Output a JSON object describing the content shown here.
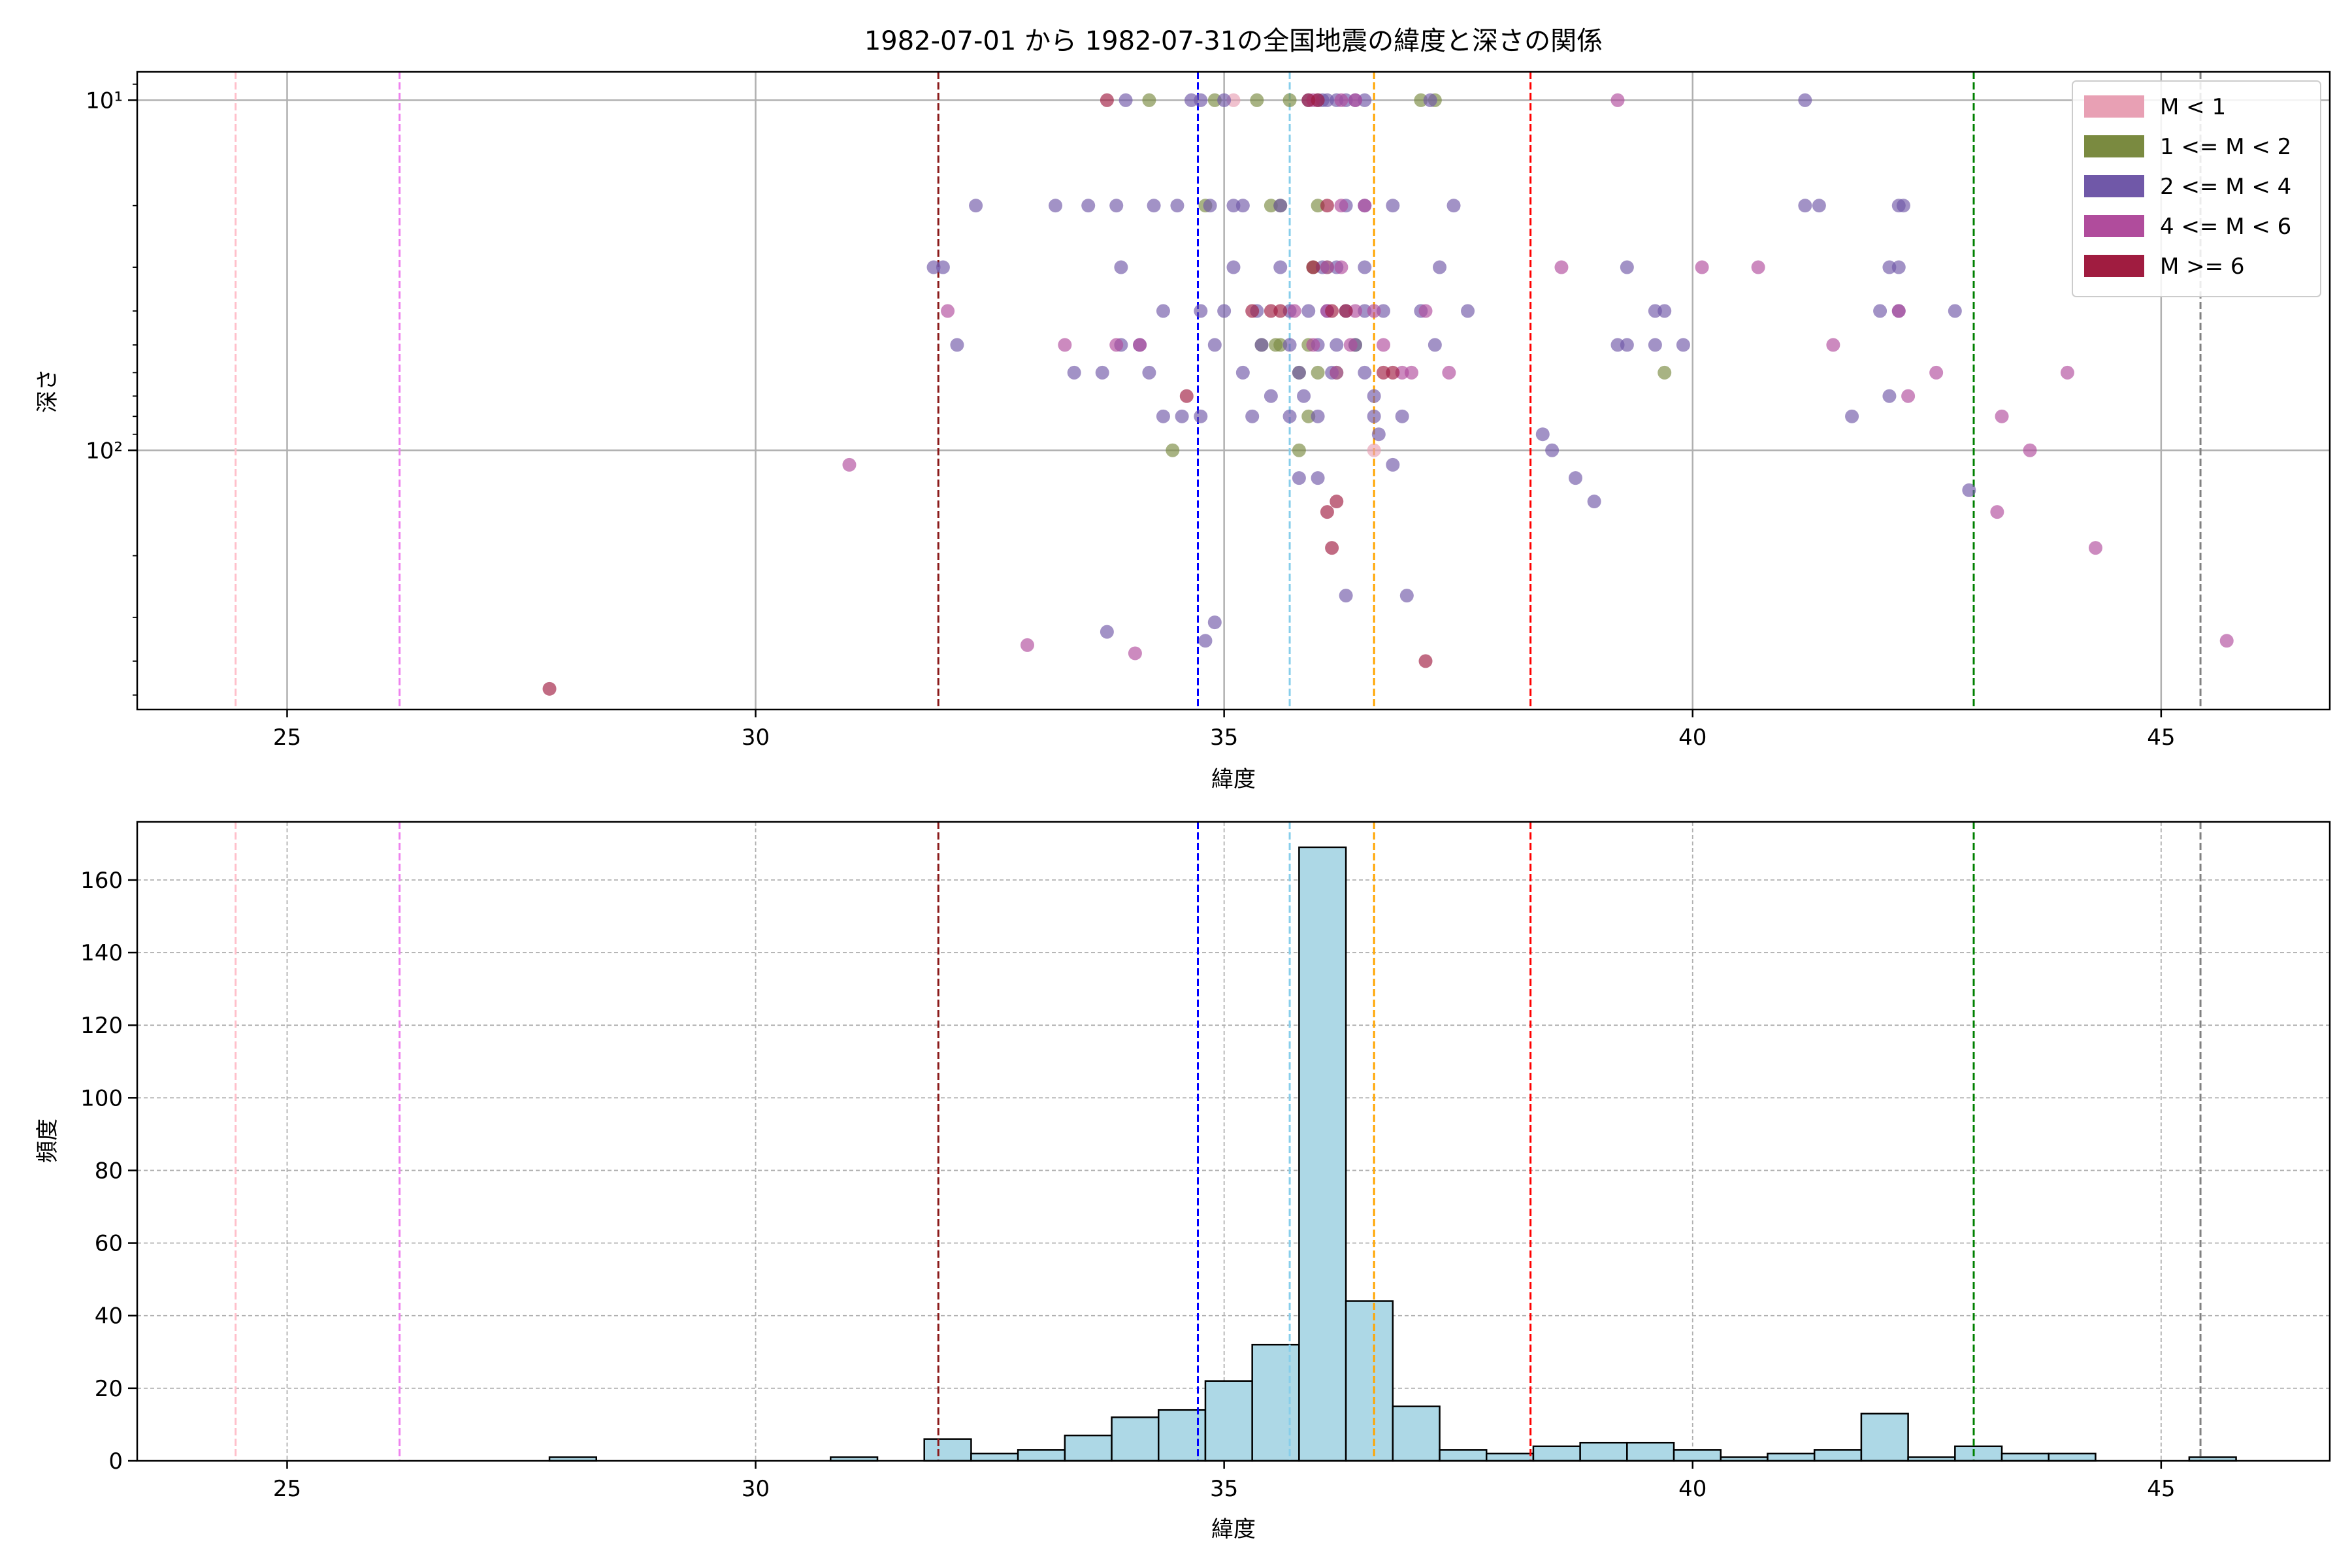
{
  "title": "1982-07-01 から 1982-07-31の全国地震の緯度と深さの関係",
  "chart_data": [
    {
      "type": "scatter",
      "xlabel": "緯度",
      "ylabel": "深さ",
      "xlim": [
        23.4,
        46.8
      ],
      "ylim": [
        550,
        8.3
      ],
      "yscale": "log-inverted",
      "x_ticks": [
        25,
        30,
        35,
        40,
        45
      ],
      "y_ticks": [
        {
          "value": 10,
          "label": "10¹"
        },
        {
          "value": 100,
          "label": "10²"
        }
      ],
      "grid": true,
      "legend_position": "top-right",
      "vlines": [
        {
          "x": 24.45,
          "color": "#ffc0cb"
        },
        {
          "x": 26.2,
          "color": "#ee82ee"
        },
        {
          "x": 31.95,
          "color": "#8b1a1a"
        },
        {
          "x": 34.72,
          "color": "#0000ff"
        },
        {
          "x": 35.7,
          "color": "#87ceeb"
        },
        {
          "x": 36.6,
          "color": "#ffa500"
        },
        {
          "x": 38.27,
          "color": "#ff0000"
        },
        {
          "x": 43.0,
          "color": "#008000"
        },
        {
          "x": 45.42,
          "color": "#808080"
        }
      ],
      "series": [
        {
          "name": "M < 1",
          "color": "#e8a0b4",
          "points": [
            [
              36.6,
              100
            ],
            [
              35.1,
              10
            ]
          ]
        },
        {
          "name": "1 <= M < 2",
          "color": "#7a8a40",
          "points": [
            [
              34.2,
              10
            ],
            [
              34.9,
              10
            ],
            [
              35.35,
              10
            ],
            [
              35.7,
              10
            ],
            [
              37.1,
              10
            ],
            [
              37.25,
              10
            ],
            [
              34.8,
              20
            ],
            [
              35.5,
              20
            ],
            [
              35.6,
              20
            ],
            [
              36.0,
              20
            ],
            [
              35.95,
              30
            ],
            [
              36.1,
              30
            ],
            [
              35.4,
              50
            ],
            [
              35.6,
              50
            ],
            [
              35.9,
              50
            ],
            [
              36.4,
              50
            ],
            [
              35.8,
              60
            ],
            [
              36.0,
              60
            ],
            [
              36.2,
              60
            ],
            [
              35.9,
              80
            ],
            [
              39.7,
              60
            ],
            [
              35.8,
              100
            ],
            [
              34.45,
              100
            ],
            [
              35.55,
              50
            ]
          ]
        },
        {
          "name": "2 <= M < 4",
          "color": "#7058a8",
          "points": [
            [
              33.95,
              10
            ],
            [
              34.65,
              10
            ],
            [
              34.75,
              10
            ],
            [
              35.0,
              10
            ],
            [
              35.9,
              10
            ],
            [
              36.0,
              10
            ],
            [
              36.1,
              10
            ],
            [
              36.2,
              10
            ],
            [
              36.3,
              10
            ],
            [
              36.4,
              10
            ],
            [
              36.5,
              10
            ],
            [
              36.05,
              10
            ],
            [
              37.2,
              10
            ],
            [
              41.2,
              10
            ],
            [
              32.35,
              20
            ],
            [
              33.2,
              20
            ],
            [
              33.55,
              20
            ],
            [
              33.85,
              20
            ],
            [
              34.25,
              20
            ],
            [
              34.5,
              20
            ],
            [
              34.85,
              20
            ],
            [
              35.1,
              20
            ],
            [
              35.2,
              20
            ],
            [
              35.6,
              20
            ],
            [
              36.3,
              20
            ],
            [
              36.5,
              20
            ],
            [
              36.8,
              20
            ],
            [
              37.45,
              20
            ],
            [
              41.2,
              20
            ],
            [
              41.35,
              20
            ],
            [
              42.2,
              20
            ],
            [
              42.25,
              20
            ],
            [
              31.9,
              30
            ],
            [
              32.0,
              30
            ],
            [
              33.9,
              30
            ],
            [
              35.1,
              30
            ],
            [
              35.6,
              30
            ],
            [
              36.05,
              30
            ],
            [
              36.2,
              30
            ],
            [
              36.5,
              30
            ],
            [
              37.3,
              30
            ],
            [
              39.3,
              30
            ],
            [
              42.1,
              30
            ],
            [
              42.2,
              30
            ],
            [
              34.35,
              40
            ],
            [
              34.75,
              40
            ],
            [
              35.0,
              40
            ],
            [
              35.35,
              40
            ],
            [
              35.7,
              40
            ],
            [
              35.9,
              40
            ],
            [
              36.1,
              40
            ],
            [
              36.3,
              40
            ],
            [
              36.5,
              40
            ],
            [
              36.7,
              40
            ],
            [
              37.1,
              40
            ],
            [
              37.6,
              40
            ],
            [
              39.6,
              40
            ],
            [
              39.7,
              40
            ],
            [
              42.0,
              40
            ],
            [
              42.2,
              40
            ],
            [
              42.8,
              40
            ],
            [
              32.15,
              50
            ],
            [
              33.9,
              50
            ],
            [
              34.1,
              50
            ],
            [
              34.9,
              50
            ],
            [
              35.4,
              50
            ],
            [
              35.7,
              50
            ],
            [
              36.0,
              50
            ],
            [
              36.2,
              50
            ],
            [
              36.4,
              50
            ],
            [
              37.25,
              50
            ],
            [
              39.2,
              50
            ],
            [
              39.3,
              50
            ],
            [
              39.6,
              50
            ],
            [
              39.9,
              50
            ],
            [
              33.7,
              60
            ],
            [
              34.2,
              60
            ],
            [
              35.2,
              60
            ],
            [
              35.8,
              60
            ],
            [
              36.15,
              60
            ],
            [
              36.5,
              60
            ],
            [
              34.35,
              80
            ],
            [
              34.55,
              80
            ],
            [
              34.75,
              80
            ],
            [
              35.3,
              80
            ],
            [
              35.7,
              80
            ],
            [
              36.0,
              80
            ],
            [
              36.6,
              80
            ],
            [
              36.9,
              80
            ],
            [
              35.5,
              70
            ],
            [
              35.85,
              70
            ],
            [
              36.6,
              70
            ],
            [
              41.7,
              80
            ],
            [
              42.1,
              70
            ],
            [
              38.75,
              120
            ],
            [
              38.95,
              140
            ],
            [
              42.95,
              130
            ],
            [
              36.8,
              110
            ],
            [
              35.8,
              120
            ],
            [
              36.0,
              120
            ],
            [
              36.3,
              260
            ],
            [
              36.95,
              260
            ],
            [
              33.75,
              330
            ],
            [
              34.8,
              350
            ],
            [
              34.9,
              310
            ],
            [
              38.5,
              100
            ],
            [
              38.4,
              90
            ],
            [
              33.4,
              60
            ],
            [
              36.65,
              90
            ]
          ]
        },
        {
          "name": "4 <= M < 6",
          "color": "#b04c9c",
          "points": [
            [
              35.95,
              10
            ],
            [
              36.25,
              10
            ],
            [
              36.4,
              10
            ],
            [
              39.2,
              10
            ],
            [
              36.25,
              20
            ],
            [
              36.5,
              20
            ],
            [
              36.25,
              30
            ],
            [
              38.6,
              30
            ],
            [
              40.1,
              30
            ],
            [
              40.7,
              30
            ],
            [
              42.2,
              40
            ],
            [
              37.15,
              40
            ],
            [
              36.1,
              40
            ],
            [
              36.4,
              40
            ],
            [
              36.6,
              40
            ],
            [
              32.05,
              40
            ],
            [
              33.3,
              50
            ],
            [
              33.85,
              50
            ],
            [
              41.5,
              50
            ],
            [
              37.0,
              60
            ],
            [
              37.4,
              60
            ],
            [
              42.6,
              60
            ],
            [
              44.0,
              60
            ],
            [
              34.1,
              50
            ],
            [
              35.95,
              50
            ],
            [
              36.35,
              50
            ],
            [
              42.3,
              70
            ],
            [
              43.3,
              80
            ],
            [
              43.6,
              100
            ],
            [
              43.25,
              150
            ],
            [
              44.3,
              190
            ],
            [
              45.7,
              350
            ],
            [
              31.0,
              110
            ],
            [
              32.9,
              360
            ],
            [
              34.05,
              380
            ],
            [
              36.7,
              50
            ],
            [
              36.9,
              60
            ],
            [
              35.75,
              40
            ],
            [
              36.1,
              30
            ],
            [
              36.2,
              60
            ]
          ]
        },
        {
          "name": "M >= 6",
          "color": "#a01c40",
          "points": [
            [
              33.75,
              10
            ],
            [
              35.9,
              10
            ],
            [
              36.0,
              10
            ],
            [
              35.3,
              40
            ],
            [
              35.6,
              40
            ],
            [
              35.95,
              30
            ],
            [
              36.1,
              20
            ],
            [
              36.7,
              60
            ],
            [
              36.8,
              60
            ],
            [
              34.6,
              70
            ],
            [
              36.2,
              140
            ],
            [
              36.1,
              150
            ],
            [
              36.15,
              190
            ],
            [
              37.15,
              400
            ],
            [
              27.8,
              480
            ],
            [
              36.15,
              40
            ],
            [
              35.5,
              40
            ],
            [
              36.3,
              40
            ]
          ]
        }
      ]
    },
    {
      "type": "bar",
      "xlabel": "緯度",
      "ylabel": "頻度",
      "xlim": [
        23.4,
        46.8
      ],
      "ylim": [
        0,
        176
      ],
      "x_ticks": [
        25,
        30,
        35,
        40,
        45
      ],
      "y_ticks": [
        0,
        20,
        40,
        60,
        80,
        100,
        120,
        140,
        160
      ],
      "grid": true,
      "bar_color": "#add8e6",
      "edge_color": "#000000",
      "bin_width": 0.5,
      "bins": [
        [
          27.8,
          1
        ],
        [
          30.8,
          1
        ],
        [
          31.8,
          6
        ],
        [
          32.3,
          2
        ],
        [
          32.8,
          3
        ],
        [
          33.3,
          7
        ],
        [
          33.8,
          12
        ],
        [
          34.3,
          14
        ],
        [
          34.8,
          22
        ],
        [
          35.3,
          32
        ],
        [
          35.8,
          169
        ],
        [
          36.3,
          44
        ],
        [
          36.8,
          15
        ],
        [
          37.3,
          3
        ],
        [
          37.8,
          2
        ],
        [
          38.3,
          4
        ],
        [
          38.8,
          5
        ],
        [
          39.3,
          5
        ],
        [
          39.8,
          3
        ],
        [
          40.3,
          1
        ],
        [
          40.8,
          2
        ],
        [
          41.3,
          3
        ],
        [
          41.8,
          13
        ],
        [
          42.3,
          1
        ],
        [
          42.8,
          4
        ],
        [
          43.3,
          2
        ],
        [
          43.8,
          2
        ],
        [
          45.3,
          1
        ]
      ],
      "vlines": [
        {
          "x": 24.45,
          "color": "#ffc0cb"
        },
        {
          "x": 26.2,
          "color": "#ee82ee"
        },
        {
          "x": 31.95,
          "color": "#8b1a1a"
        },
        {
          "x": 34.72,
          "color": "#0000ff"
        },
        {
          "x": 35.7,
          "color": "#87ceeb"
        },
        {
          "x": 36.6,
          "color": "#ffa500"
        },
        {
          "x": 38.27,
          "color": "#ff0000"
        },
        {
          "x": 43.0,
          "color": "#008000"
        },
        {
          "x": 45.42,
          "color": "#808080"
        }
      ]
    }
  ]
}
